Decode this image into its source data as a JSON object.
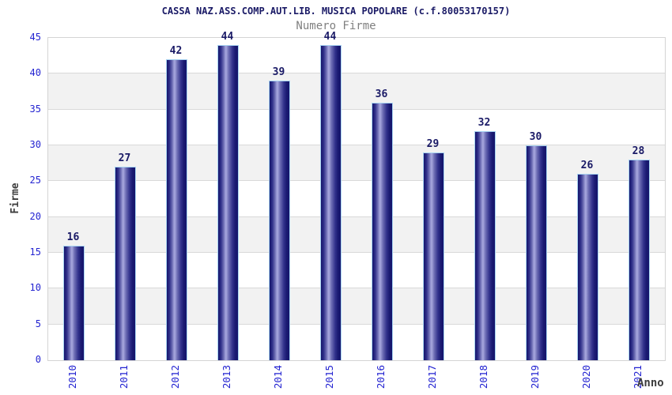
{
  "header": {
    "title": "CASSA NAZ.ASS.COMP.AUT.LIB. MUSICA POPOLARE (c.f.80053170157)",
    "subtitle": "Numero Firme"
  },
  "chart_data": {
    "type": "bar",
    "title": "CASSA NAZ.ASS.COMP.AUT.LIB. MUSICA POPOLARE (c.f.80053170157)",
    "subtitle": "Numero Firme",
    "categories": [
      "2010",
      "2011",
      "2012",
      "2013",
      "2014",
      "2015",
      "2016",
      "2017",
      "2018",
      "2019",
      "2020",
      "2021"
    ],
    "values": [
      16,
      27,
      42,
      44,
      39,
      44,
      36,
      29,
      32,
      30,
      26,
      28
    ],
    "xlabel": "Anno",
    "ylabel": "Firme",
    "ylim": [
      0,
      45
    ],
    "ytick_step": 5,
    "yticks": [
      0,
      5,
      10,
      15,
      20,
      25,
      30,
      35,
      40,
      45
    ],
    "grid": "horizontal alternating bands",
    "legend_position": "none",
    "data_labels": "above bars",
    "colors": {
      "title_text": "#1a1a66",
      "subtitle_text": "#808080",
      "tick_text": "#2323d1",
      "axis_title_text": "#3d3d3d",
      "bar_dark": "#15156b",
      "bar_light": "#a2a2da",
      "bar_border": "#a8d4f2",
      "band_gray": "#f2f2f2",
      "gridline": "#d9d9d9",
      "plot_border": "#d4d4d4",
      "background": "#ffffff"
    }
  }
}
